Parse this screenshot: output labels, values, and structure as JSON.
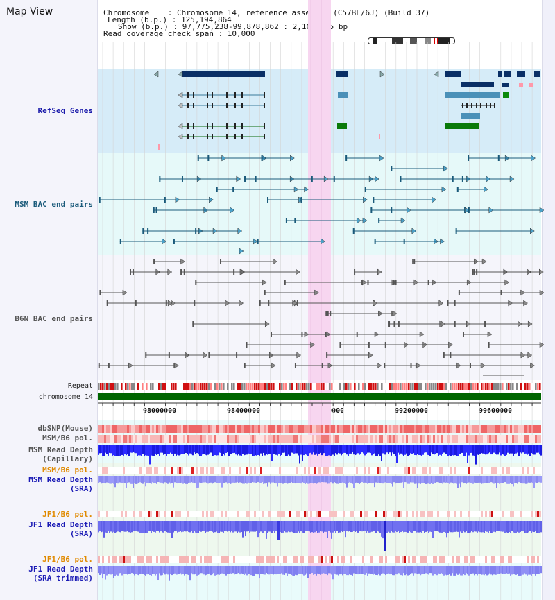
{
  "app": {
    "title": "Map View"
  },
  "info": {
    "line1": "Chromosome    : Chromosome 14, reference assembly (C57BL/6J) (Build 37)",
    "line2": "Length (b.p.) : 125,194,864",
    "line3": "Show (b.p.) : 97,775,238-99,878,862 : 2,103,625 bp",
    "line4": "Read coverage check span : 10,000"
  },
  "tracks": {
    "refseq": "RefSeq Genes",
    "msm_bac": "MSM BAC end pairs",
    "b6n_bac": "B6N BAC end pairs",
    "repeat": "Repeat",
    "chromosome": "chromosome 14",
    "dbsnp": "dbSNP(Mouse)",
    "msm_b6_pol_1": "MSM/B6 pol.",
    "msm_depth_cap_1": "MSM Read Depth",
    "msm_depth_cap_2": "(Capillary)",
    "msm_b6_pol_2": "MSM/B6 pol.",
    "msm_depth_sra_1": "MSM Read Depth",
    "msm_depth_sra_2": "(SRA)",
    "jf1_pol_1": "JF1/B6 pol.",
    "jf1_depth_sra_1": "JF1 Read Depth",
    "jf1_depth_sra_2": "(SRA)",
    "jf1_pol_2": "JF1/B6 pol.",
    "jf1_depth_trim_1": "JF1 Read Depth",
    "jf1_depth_trim_2": "(SRA trimmed)"
  },
  "axis": {
    "ticks": [
      "98000000",
      "98400000",
      "98800000",
      "99200000",
      "99600000"
    ]
  },
  "colors": {
    "refseq_label": "#1a1aaa",
    "msm_label": "#1a5a7a",
    "b6n_label": "#555555",
    "orange_label": "#e08a00",
    "blue_label": "#1a1ab5",
    "highlight": "#f7d6f0",
    "chromosome": "#006600"
  }
}
